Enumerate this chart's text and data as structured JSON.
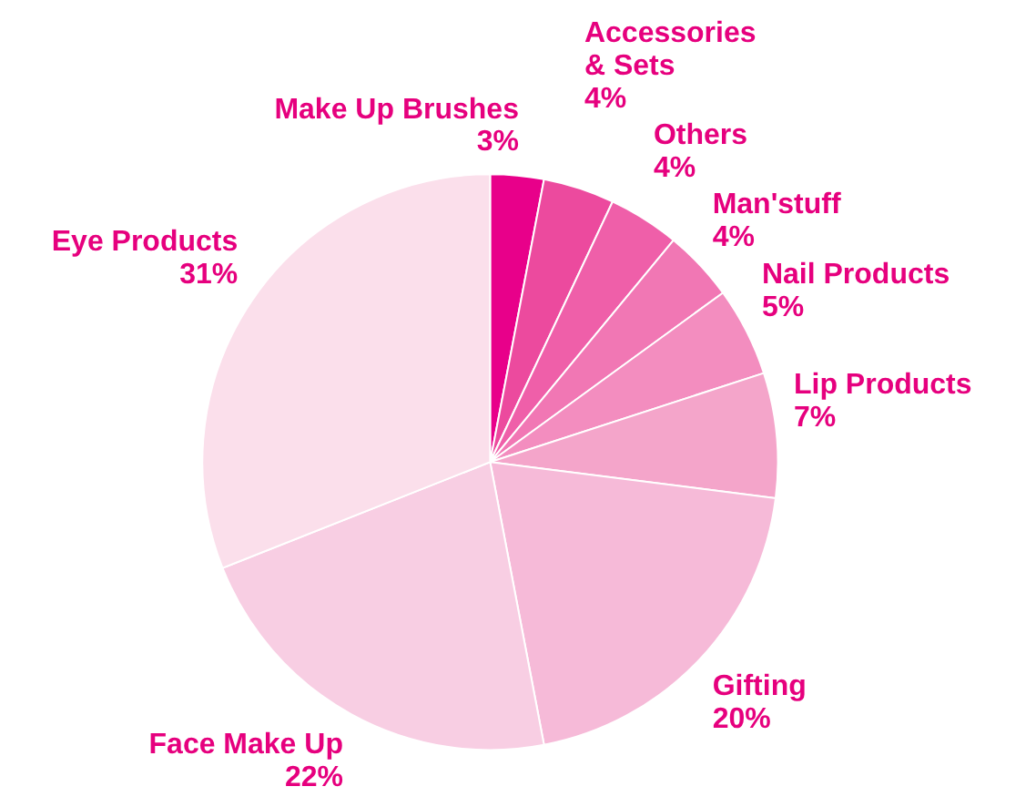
{
  "chart_data": {
    "type": "pie",
    "categories": [
      "Make Up Brushes",
      "Accessories\n& Sets",
      "Others",
      "Man'stuff",
      "Nail Products",
      "Lip Products",
      "Gifting",
      "Face Make Up",
      "Eye Products"
    ],
    "values": [
      3,
      4,
      4,
      4,
      5,
      7,
      20,
      22,
      31
    ],
    "value_labels": [
      "3%",
      "4%",
      "4%",
      "4%",
      "5%",
      "7%",
      "20%",
      "22%",
      "31%"
    ],
    "colors": [
      "#e8008a",
      "#ec4a9e",
      "#ef5fa9",
      "#f177b4",
      "#f38dbf",
      "#f4a5ca",
      "#f6bad8",
      "#f8cee3",
      "#fbdfeb"
    ]
  }
}
